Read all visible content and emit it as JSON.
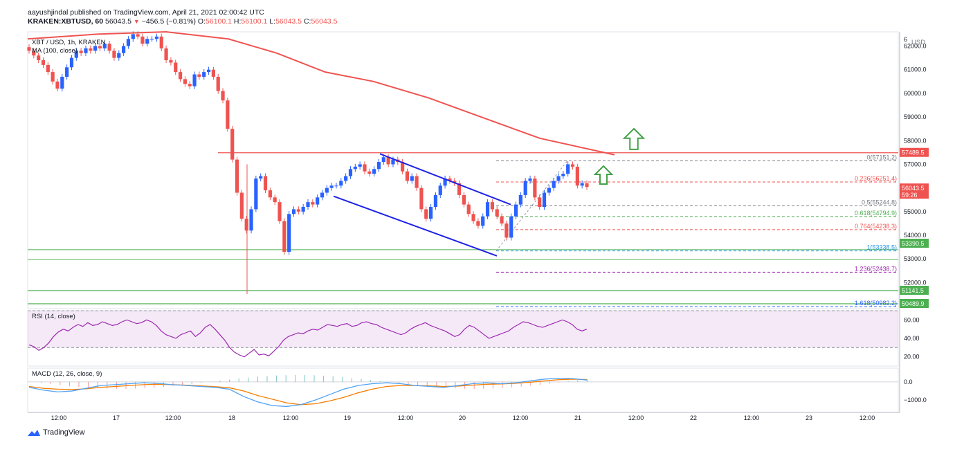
{
  "header": {
    "publisher_line": "aayushjindal published on TradingView.com, April 21, 2021 02:00:42 UTC",
    "symbol_line": "KRAKEN:XBTUSD, 60",
    "last_price": "56043.5",
    "change": "−456.5 (−0.81%)",
    "o_label": "O:",
    "o": "56100.1",
    "h_label": "H:",
    "h": "56100.1",
    "l_label": "L:",
    "l": "56043.5",
    "c_label": "C:",
    "c": "56043.5"
  },
  "main_pane": {
    "title": "XBT / USD, 1h, KRAKEN",
    "ma_label": "MA (100, close)",
    "currency": "USD"
  },
  "rsi_pane": {
    "label": "RSI (14, close)"
  },
  "macd_pane": {
    "label": "MACD (12, 26, close, 9)"
  },
  "footer": {
    "brand": "TradingView"
  },
  "colors": {
    "up": "#2962ff",
    "down": "#ef5350",
    "ma": "#ef5350",
    "channel": "#1e22e6",
    "support": "#4caf50",
    "arrow": "#43a047",
    "rsi": "#9c27b0",
    "macd": "#4fa3f7",
    "signal": "#f57c00"
  },
  "chart_data": {
    "type": "candlestick",
    "x_ticks": [
      "12:00",
      "17",
      "12:00",
      "18",
      "12:00",
      "19",
      "12:00",
      "20",
      "12:00",
      "21",
      "12:00",
      "22",
      "12:00",
      "23",
      "12:00"
    ],
    "y_ticks": [
      "6",
      "62000.0",
      "61000.0",
      "60000.0",
      "59000.0",
      "58000.0",
      "57000.0",
      "56000.0",
      "55000.0",
      "54000.0",
      "53000.0",
      "52000.0"
    ],
    "ylim": [
      50900,
      62600
    ],
    "close_series": [
      61800,
      61600,
      61400,
      61200,
      60900,
      60500,
      60200,
      60700,
      61100,
      61500,
      61800,
      61700,
      61900,
      61800,
      62000,
      61900,
      62100,
      61800,
      61500,
      61700,
      62000,
      62300,
      62500,
      62400,
      62100,
      62300,
      62300,
      62400,
      61900,
      61400,
      61300,
      60900,
      60600,
      60400,
      60300,
      60800,
      60700,
      60900,
      61000,
      60700,
      60100,
      59700,
      58500,
      57200,
      55800,
      54700,
      54200,
      55100,
      56400,
      56500,
      55900,
      55600,
      55400,
      54600,
      53300,
      54900,
      55100,
      55000,
      55200,
      55400,
      55300,
      55600,
      55800,
      56000,
      56100,
      56100,
      56300,
      56500,
      56800,
      56900,
      57000,
      56700,
      56600,
      56800,
      57100,
      57300,
      57000,
      57200,
      57100,
      56700,
      56300,
      56500,
      56000,
      55100,
      54700,
      55200,
      55700,
      56100,
      56400,
      56300,
      56200,
      55700,
      55300,
      54900,
      54600,
      54400,
      54800,
      55400,
      55100,
      54800,
      54500,
      53900,
      54800,
      55300,
      55700,
      56300,
      56400,
      55600,
      55200,
      55800,
      56000,
      56300,
      56500,
      56600,
      57000,
      56900,
      56100,
      56200,
      56043.5
    ],
    "ma_100": [
      [
        0,
        62300
      ],
      [
        100,
        62500
      ],
      [
        200,
        62600
      ],
      [
        290,
        62300
      ],
      [
        360,
        61700
      ],
      [
        430,
        60900
      ],
      [
        500,
        60500
      ],
      [
        580,
        59800
      ],
      [
        660,
        58950
      ],
      [
        740,
        58100
      ],
      [
        848,
        57400
      ]
    ],
    "horizontal_levels": [
      {
        "label": "57489.5",
        "value": 57489.5,
        "color": "#ef5350"
      },
      {
        "label": "53390.5",
        "value": 53390.5,
        "color": "#4caf50"
      },
      {
        "label": "51141.5",
        "value": 51141.5,
        "color": "#4caf50"
      },
      {
        "label": "50489.9",
        "value": 50489.9,
        "color": "#4caf50"
      }
    ],
    "current_price_tag": {
      "value": "56043.5",
      "countdown": "59:26"
    },
    "fibonacci": [
      {
        "label": "0(57151.2)",
        "value": 57151.2,
        "color": "#787b86"
      },
      {
        "label": "0.236(56251.4)",
        "value": 56251.4,
        "color": "#ef5350"
      },
      {
        "label": "0.5(55244.8)",
        "value": 55244.8,
        "color": "#787b86"
      },
      {
        "label": "0.618(54794.9)",
        "value": 54794.9,
        "color": "#4caf50"
      },
      {
        "label": "0.764(54238.3)",
        "value": 54238.3,
        "color": "#ef5350"
      },
      {
        "label": "1(53338.5)",
        "value": 53338.5,
        "color": "#2196f3"
      },
      {
        "label": "1.236(52438.7)",
        "value": 52438.7,
        "color": "#9c27b0"
      },
      {
        "label": "1.618(50982.2)",
        "value": 50982.2,
        "color": "#2962ff"
      }
    ],
    "rsi_ticks": [
      "60.00",
      "40.00",
      "20.00"
    ],
    "macd_ticks": [
      "0.0",
      "−1000.0"
    ]
  }
}
